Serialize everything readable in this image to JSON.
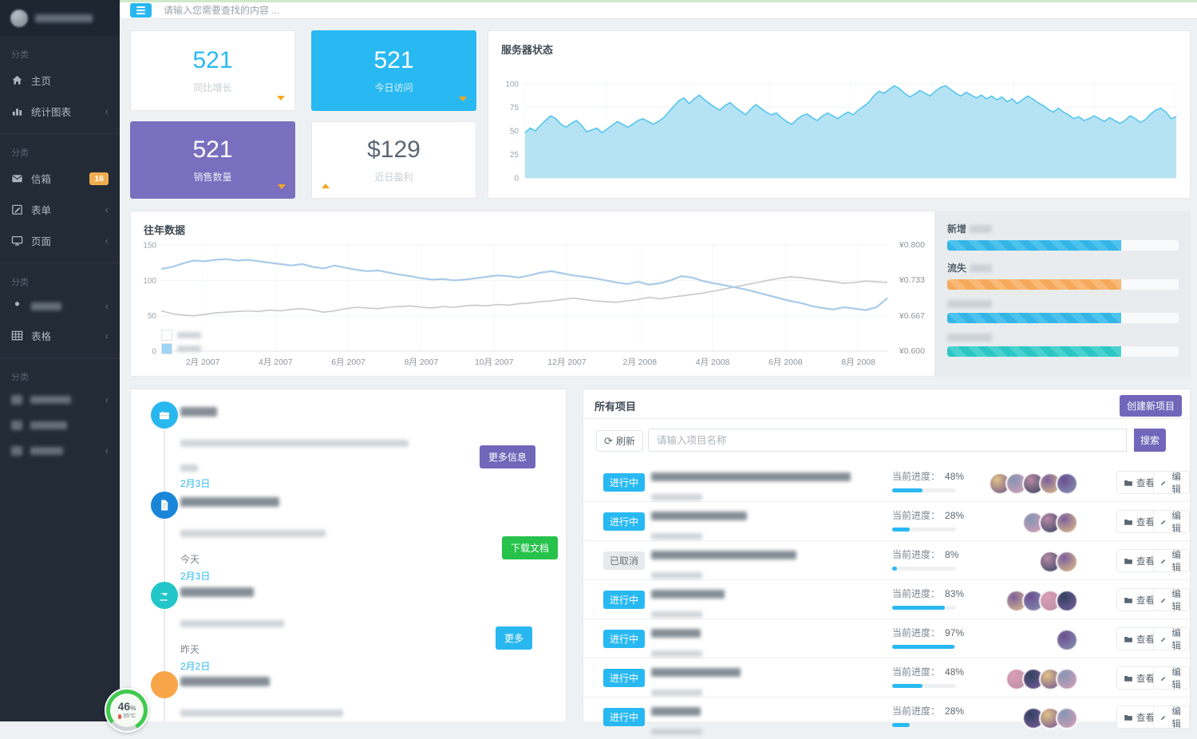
{
  "topbar": {
    "search_placeholder": "请输入您需要查找的内容 ..."
  },
  "sidebar": {
    "sections": [
      {
        "label": "分类",
        "divider": false,
        "items": [
          {
            "label": "主页",
            "icon": "home-icon"
          },
          {
            "label": "统计图表",
            "icon": "bar-chart-icon",
            "chevron": true
          }
        ]
      },
      {
        "label": "分类",
        "divider": true,
        "items": [
          {
            "label": "信箱",
            "icon": "mail-icon",
            "badge": "16"
          },
          {
            "label": "表单",
            "icon": "form-icon",
            "chevron": true
          },
          {
            "label": "页面",
            "icon": "monitor-icon",
            "chevron": true
          }
        ]
      },
      {
        "label": "分类",
        "divider": true,
        "items": [
          {
            "redacted": true,
            "icon": "user-icon",
            "chevron": true
          },
          {
            "label": "表格",
            "icon": "table-icon",
            "chevron": true
          }
        ]
      },
      {
        "label": "分类",
        "divider": true,
        "items": [
          {
            "redacted": true,
            "icon": "redacted-icon",
            "chevron": true
          },
          {
            "redacted": true,
            "icon": "redacted-icon"
          },
          {
            "redacted": true,
            "icon": "redacted-icon",
            "chevron": true
          }
        ]
      }
    ]
  },
  "stats": [
    {
      "value": "521",
      "label": "同比增长",
      "style": "white-blue",
      "caret": "down"
    },
    {
      "value": "521",
      "label": "今日访问",
      "style": "blue",
      "caret": "down"
    },
    {
      "value": "521",
      "label": "销售数量",
      "style": "purple",
      "caret": "down"
    },
    {
      "value": "$129",
      "label": "近日盈利",
      "style": "white-gray",
      "caret": "up"
    }
  ],
  "chart_data": [
    {
      "type": "area",
      "title": "服务器状态",
      "ylim": [
        0,
        100
      ],
      "yticks": [
        0,
        25,
        50,
        75,
        100
      ],
      "xlabel": "",
      "ylabel": "",
      "grid": true,
      "legend": "none",
      "values": [
        48,
        53,
        50,
        56,
        61,
        66,
        63,
        57,
        54,
        58,
        61,
        56,
        49,
        51,
        53,
        48,
        52,
        56,
        60,
        57,
        54,
        57,
        61,
        63,
        60,
        57,
        60,
        64,
        70,
        76,
        82,
        85,
        79,
        84,
        88,
        83,
        79,
        75,
        72,
        77,
        80,
        75,
        71,
        67,
        73,
        78,
        74,
        70,
        67,
        69,
        64,
        60,
        57,
        62,
        66,
        68,
        64,
        61,
        66,
        69,
        66,
        63,
        67,
        70,
        67,
        72,
        76,
        80,
        87,
        92,
        90,
        94,
        98,
        95,
        90,
        86,
        89,
        93,
        90,
        87,
        92,
        96,
        98,
        94,
        90,
        87,
        91,
        88,
        85,
        88,
        84,
        87,
        83,
        86,
        81,
        84,
        79,
        83,
        87,
        84,
        80,
        77,
        73,
        70,
        74,
        70,
        67,
        63,
        65,
        61,
        63,
        66,
        63,
        60,
        64,
        61,
        58,
        61,
        66,
        63,
        59,
        62,
        68,
        72,
        74,
        70,
        63,
        65
      ]
    },
    {
      "type": "line",
      "title": "往年数据",
      "ylim": [
        0,
        150
      ],
      "yticks": [
        0,
        50,
        100,
        150
      ],
      "right_axis_labels": [
        "¥0.800",
        "¥0.733",
        "¥0.667",
        "¥0.600"
      ],
      "x_labels": [
        "2月 2007",
        "4月 2007",
        "6月 2007",
        "8月 2007",
        "10月 2007",
        "12月 2007",
        "2月 2008",
        "4月 2008",
        "6月 2008",
        "8月 2008"
      ],
      "grid": true,
      "legend_position": "bottom-left",
      "legend": [
        {
          "name_redacted": true,
          "swatch": "#fdfdfd"
        },
        {
          "name_redacted": true,
          "swatch": "#9fd4f5"
        }
      ],
      "series": [
        {
          "name": "series-blue",
          "color": "#a9cbe8",
          "values": [
            116,
            119,
            124,
            128,
            127,
            129,
            130,
            128,
            129,
            127,
            125,
            123,
            121,
            123,
            119,
            117,
            121,
            118,
            115,
            113,
            114,
            111,
            108,
            106,
            103,
            101,
            102,
            100,
            101,
            103,
            105,
            107,
            106,
            104,
            107,
            111,
            113,
            110,
            107,
            105,
            103,
            100,
            97,
            95,
            98,
            94,
            96,
            100,
            106,
            104,
            99,
            96,
            93,
            90,
            87,
            83,
            79,
            75,
            71,
            68,
            64,
            61,
            59,
            62,
            60,
            58,
            62,
            75
          ]
        },
        {
          "name": "series-gray",
          "color": "#c8c8c8",
          "values": [
            57,
            53,
            51,
            50,
            52,
            54,
            55,
            56,
            57,
            56,
            58,
            57,
            59,
            60,
            58,
            55,
            57,
            60,
            62,
            61,
            60,
            62,
            63,
            64,
            62,
            61,
            63,
            62,
            64,
            65,
            64,
            66,
            65,
            67,
            68,
            70,
            71,
            73,
            75,
            73,
            71,
            70,
            69,
            71,
            73,
            76,
            74,
            76,
            78,
            80,
            82,
            85,
            88,
            91,
            94,
            97,
            100,
            103,
            105,
            104,
            102,
            100,
            98,
            96,
            97,
            99,
            98,
            97
          ]
        }
      ]
    }
  ],
  "progress_panel": {
    "items": [
      {
        "label": "新增",
        "suffix_redacted": true,
        "color": "blue",
        "value": 75
      },
      {
        "label": "流失",
        "suffix_redacted": true,
        "color": "orange",
        "value": 75
      },
      {
        "label": "",
        "redacted": true,
        "color": "blue",
        "value": 75
      },
      {
        "label": "",
        "redacted": true,
        "color": "teal",
        "value": 75
      }
    ]
  },
  "timeline": {
    "items": [
      {
        "icon": "briefcase-icon",
        "icon_color": "#29b7ef",
        "title_redacted": true,
        "desc_redacted": true,
        "time_redacted": true,
        "date": "2月3日",
        "button": {
          "label": "更多信息",
          "color": "#7266ba"
        }
      },
      {
        "icon": "document-icon",
        "icon_color": "#1a86d9",
        "title_redacted": true,
        "desc_redacted": true,
        "time": "今天",
        "date": "2月3日",
        "button": {
          "label": "下载文档",
          "color": "#27c24c"
        }
      },
      {
        "icon": "coffee-icon",
        "icon_color": "#23c6c8",
        "title_redacted": true,
        "desc_redacted": true,
        "time": "昨天",
        "date": "2月2日",
        "button": {
          "label": "更多",
          "color": "#29b7ef"
        }
      },
      {
        "icon": "phone-icon",
        "icon_color": "#f8a54a",
        "title_redacted": true,
        "desc_redacted": true
      }
    ]
  },
  "projects": {
    "title": "所有项目",
    "create_button": "创建新项目",
    "refresh_button": "刷新",
    "search_placeholder": "请输入项目名称",
    "search_button": "搜索",
    "progress_label": "当前进度：",
    "view_button": "查看",
    "edit_button": "编辑",
    "status_labels": {
      "active": "进行中",
      "cancelled": "已取消"
    },
    "rows": [
      {
        "status": "active",
        "progress": 48,
        "avatars": 5
      },
      {
        "status": "active",
        "progress": 28,
        "avatars": 3
      },
      {
        "status": "cancelled",
        "progress": 8,
        "avatars": 2
      },
      {
        "status": "active",
        "progress": 83,
        "avatars": 4
      },
      {
        "status": "active",
        "progress": 97,
        "avatars": 1
      },
      {
        "status": "active",
        "progress": 48,
        "avatars": 4
      },
      {
        "status": "active",
        "progress": 28,
        "avatars": 3
      }
    ]
  },
  "gauge": {
    "value": "46",
    "percent_sign": "%",
    "temperature": "35°C"
  },
  "colors": {
    "accent_blue": "#29b9f2",
    "purple": "#7266ba",
    "green": "#27c24c",
    "orange": "#f6a821",
    "teal": "#23c6c8",
    "badge_orange": "#f0ad4e",
    "area_fill": "#aee0f3",
    "area_line": "#55c6ec",
    "avatar_palette": [
      "#6b4f8e",
      "#d9a0b5",
      "#32415f",
      "#e2c387",
      "#8795b5",
      "#b98aa6",
      "#7d5f9e"
    ]
  }
}
